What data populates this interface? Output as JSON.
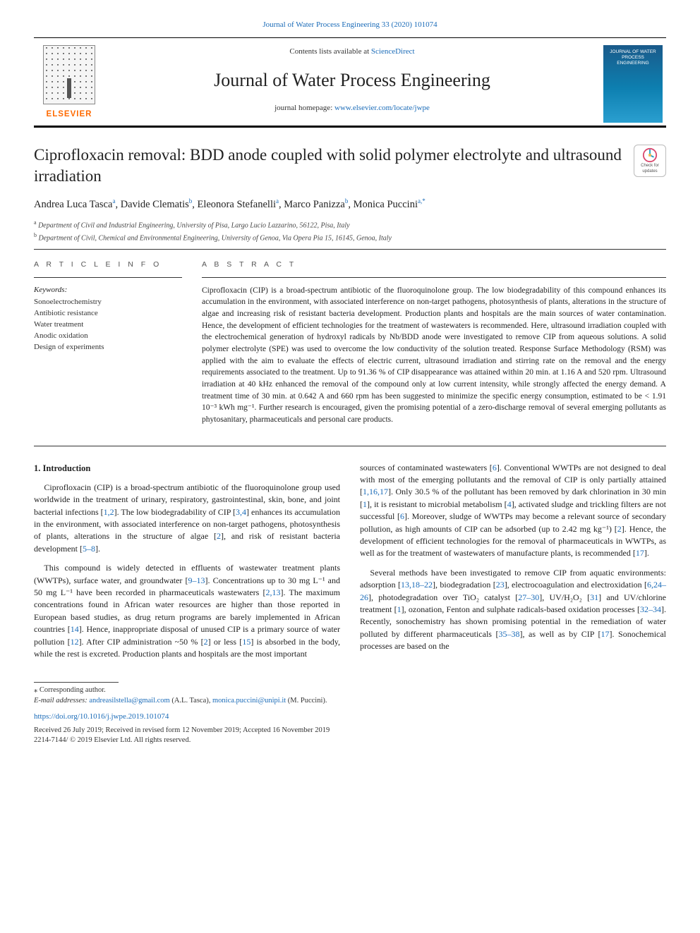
{
  "journal_ref": "Journal of Water Process Engineering 33 (2020) 101074",
  "header": {
    "contents_prefix": "Contents lists available at ",
    "contents_link": "ScienceDirect",
    "journal_name": "Journal of Water Process Engineering",
    "homepage_prefix": "journal homepage: ",
    "homepage_url": "www.elsevier.com/locate/jwpe",
    "publisher": "ELSEVIER",
    "cover_text": "JOURNAL OF WATER PROCESS ENGINEERING"
  },
  "updates_badge": {
    "line1": "Check for",
    "line2": "updates"
  },
  "article": {
    "title": "Ciprofloxacin removal: BDD anode coupled with solid polymer electrolyte and ultrasound irradiation",
    "authors_html": "Andrea Luca Tasca<sup>a</sup>, Davide Clematis<sup>b</sup>, Eleonora Stefanelli<sup>a</sup>, Marco Panizza<sup>b</sup>, Monica Puccini<sup>a,*</sup>",
    "affiliations": [
      {
        "sup": "a",
        "text": "Department of Civil and Industrial Engineering, University of Pisa, Largo Lucio Lazzarino, 56122, Pisa, Italy"
      },
      {
        "sup": "b",
        "text": "Department of Civil, Chemical and Environmental Engineering, University of Genoa, Via Opera Pia 15, 16145, Genoa, Italy"
      }
    ]
  },
  "info": {
    "article_info_label": "A R T I C L E  I N F O",
    "keywords_label": "Keywords:",
    "keywords": [
      "Sonoelectrochemistry",
      "Antibiotic resistance",
      "Water treatment",
      "Anodic oxidation",
      "Design of experiments"
    ]
  },
  "abstract": {
    "label": "A B S T R A C T",
    "text": "Ciprofloxacin (CIP) is a broad-spectrum antibiotic of the fluoroquinolone group. The low biodegradability of this compound enhances its accumulation in the environment, with associated interference on non-target pathogens, photosynthesis of plants, alterations in the structure of algae and increasing risk of resistant bacteria development. Production plants and hospitals are the main sources of water contamination. Hence, the development of efficient technologies for the treatment of wastewaters is recommended. Here, ultrasound irradiation coupled with the electrochemical generation of hydroxyl radicals by Nb/BDD anode were investigated to remove CIP from aqueous solutions. A solid polymer electrolyte (SPE) was used to overcome the low conductivity of the solution treated. Response Surface Methodology (RSM) was applied with the aim to evaluate the effects of electric current, ultrasound irradiation and stirring rate on the removal and the energy requirements associated to the treatment. Up to 91.36 % of CIP disappearance was attained within 20 min. at 1.16 A and 520 rpm. Ultrasound irradiation at 40 kHz enhanced the removal of the compound only at low current intensity, while strongly affected the energy demand. A treatment time of 30 min. at 0.642 A and 660 rpm has been suggested to minimize the specific energy consumption, estimated to be < 1.91 10⁻³ kWh mg⁻¹. Further research is encouraged, given the promising potential of a zero-discharge removal of several emerging pollutants as phytosanitary, pharmaceuticals and personal care products."
  },
  "body": {
    "heading": "1. Introduction",
    "p1": "Ciprofloxacin (CIP) is a broad-spectrum antibiotic of the fluoroquinolone group used worldwide in the treatment of urinary, respiratory, gastrointestinal, skin, bone, and joint bacterial infections [1,2]. The low biodegradability of CIP [3,4] enhances its accumulation in the environment, with associated interference on non-target pathogens, photosynthesis of plants, alterations in the structure of algae [2], and risk of resistant bacteria development [5–8].",
    "p2": "This compound is widely detected in effluents of wastewater treatment plants (WWTPs), surface water, and groundwater [9–13]. Concentrations up to 30 mg L⁻¹ and 50 mg L⁻¹ have been recorded in pharmaceuticals wastewaters [2,13]. The maximum concentrations found in African water resources are higher than those reported in European based studies, as drug return programs are barely implemented in African countries [14]. Hence, inappropriate disposal of unused CIP is a primary source of water pollution [12]. After CIP administration ~50 % [2] or less [15] is absorbed in the body, while the rest is excreted. Production plants and hospitals are the most important",
    "p3": "sources of contaminated wastewaters [6]. Conventional WWTPs are not designed to deal with most of the emerging pollutants and the removal of CIP is only partially attained [1,16,17]. Only 30.5 % of the pollutant has been removed by dark chlorination in 30 min [1], it is resistant to microbial metabolism [4], activated sludge and trickling filters are not successful [6]. Moreover, sludge of WWTPs may become a relevant source of secondary pollution, as high amounts of CIP can be adsorbed (up to 2.42 mg kg⁻¹) [2]. Hence, the development of efficient technologies for the removal of pharmaceuticals in WWTPs, as well as for the treatment of wastewaters of manufacture plants, is recommended [17].",
    "p4": "Several methods have been investigated to remove CIP from aquatic environments: adsorption [13,18–22], biodegradation [23], electrocoagulation and electroxidation [6,24–26], photodegradation over TiO₂ catalyst [27–30], UV/H₂O₂ [31] and UV/chlorine treatment [1], ozonation, Fenton and sulphate radicals-based oxidation processes [32–34]. Recently, sonochemistry has shown promising potential in the remediation of water polluted by different pharmaceuticals [35–38], as well as by CIP [17]. Sonochemical processes are based on the"
  },
  "footer": {
    "corr_label": "⁎ Corresponding author.",
    "email_label": "E-mail addresses: ",
    "email1": "andreasilstella@gmail.com",
    "email1_person": " (A.L. Tasca), ",
    "email2": "monica.puccini@unipi.it",
    "email2_person": " (M. Puccini).",
    "doi": "https://doi.org/10.1016/j.jwpe.2019.101074",
    "received": "Received 26 July 2019; Received in revised form 12 November 2019; Accepted 16 November 2019",
    "copyright": "2214-7144/ © 2019 Elsevier Ltd. All rights reserved."
  },
  "colors": {
    "link": "#1a6bb8",
    "text": "#222222",
    "orange": "#ff6a00"
  }
}
